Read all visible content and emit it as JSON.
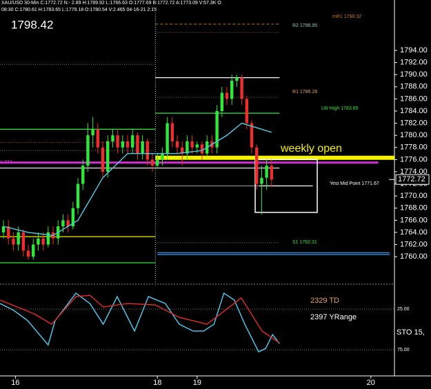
{
  "chart_data": {
    "type": "candlestick",
    "header": "XAU/USD 30-Min C:1772.72 N:- 2.89 H:1789.92 L:1766.63 O:1777.69 B:1772.72 A:1773.09 V:57.3K O",
    "subheader": "08:30 C:1780.61 H:1783.65 L:1779.18 O:1780.54 V:2.465 04-16-21 2:15",
    "big_price": "1798.42",
    "annotations": [
      "weekly open",
      "mR1 1798.32",
      "R2 1796.95",
      "R1 1786.28",
      "LW High 1783.65",
      "Yest Mid Point 1771.67",
      "S1 1762.31",
      "1.772"
    ],
    "last_price": 1772.72,
    "up_color": "#2ee83a",
    "down_color": "#ee2d2d",
    "xlim": [
      -0.7,
      78.75
    ],
    "xticks": [
      {
        "value": 2.4,
        "label": "16"
      },
      {
        "value": 31,
        "label": "18"
      },
      {
        "value": 39,
        "label": "19"
      },
      {
        "value": 74,
        "label": "20"
      }
    ],
    "ylim": [
      1755.7,
      1802.3
    ],
    "yticks": [
      1760,
      1762,
      1764,
      1766,
      1768,
      1770,
      1772,
      1774,
      1776,
      1778,
      1780,
      1782,
      1784,
      1786,
      1788,
      1790,
      1792,
      1794
    ],
    "ytick_labels": [
      "1760.00",
      "1762.00",
      "1764.00",
      "1766.00",
      "1768.00",
      "1770.00",
      "1772.00",
      "1774.00",
      "1776.00",
      "1778.00",
      "1780.00",
      "1782.00",
      "1784.00",
      "1786.00",
      "1788.00",
      "1790.00",
      "1792.00",
      "1794.00"
    ],
    "ohlc": [
      [
        1764,
        1766,
        1763,
        1765
      ],
      [
        1765,
        1766,
        1762,
        1763
      ],
      [
        1763,
        1764,
        1761,
        1762
      ],
      [
        1762,
        1765,
        1761,
        1764
      ],
      [
        1764,
        1764.5,
        1760,
        1761
      ],
      [
        1761,
        1762,
        1759.5,
        1760
      ],
      [
        1760,
        1763,
        1759.5,
        1762
      ],
      [
        1762,
        1764,
        1761,
        1763
      ],
      [
        1763,
        1764,
        1761,
        1762
      ],
      [
        1762,
        1765,
        1761.5,
        1764
      ],
      [
        1764,
        1765,
        1762,
        1763
      ],
      [
        1763,
        1766,
        1762,
        1765
      ],
      [
        1765,
        1767,
        1764,
        1766
      ],
      [
        1766,
        1767,
        1764,
        1765
      ],
      [
        1765,
        1769,
        1764.5,
        1768
      ],
      [
        1768,
        1773,
        1767,
        1772
      ],
      [
        1772,
        1776,
        1771,
        1775
      ],
      [
        1775,
        1782,
        1774,
        1780
      ],
      [
        1780,
        1783,
        1778,
        1781
      ],
      [
        1781,
        1782,
        1777,
        1778
      ],
      [
        1778,
        1779,
        1773,
        1774
      ],
      [
        1774,
        1780,
        1773,
        1779
      ],
      [
        1779,
        1781,
        1778,
        1780
      ],
      [
        1780,
        1781,
        1777,
        1778
      ],
      [
        1778,
        1780,
        1777,
        1779
      ],
      [
        1779,
        1780,
        1777,
        1778
      ],
      [
        1778,
        1781,
        1777,
        1780
      ],
      [
        1780,
        1780.5,
        1776,
        1777
      ],
      [
        1777,
        1780,
        1776,
        1779
      ],
      [
        1779,
        1779.5,
        1775,
        1776
      ],
      [
        1776,
        1777,
        1774,
        1775
      ],
      [
        1775,
        1777,
        1774.5,
        1776
      ],
      [
        1776,
        1778,
        1775,
        1777
      ],
      [
        1777,
        1783,
        1776,
        1782
      ],
      [
        1782,
        1783,
        1778,
        1779
      ],
      [
        1779,
        1780,
        1777,
        1778
      ],
      [
        1778,
        1779,
        1775,
        1777
      ],
      [
        1777,
        1780,
        1776,
        1779
      ],
      [
        1779,
        1780,
        1777,
        1778
      ],
      [
        1778,
        1779,
        1777,
        1778.5
      ],
      [
        1778.5,
        1779,
        1776,
        1777
      ],
      [
        1777,
        1780,
        1776.5,
        1779
      ],
      [
        1779,
        1780,
        1777,
        1778
      ],
      [
        1778,
        1785,
        1777,
        1784
      ],
      [
        1784,
        1788,
        1783,
        1787
      ],
      [
        1787,
        1788,
        1785,
        1786
      ],
      [
        1786,
        1790,
        1785,
        1789
      ],
      [
        1789,
        1790,
        1788,
        1789.5
      ],
      [
        1789.5,
        1790,
        1785,
        1786
      ],
      [
        1786,
        1786.5,
        1781,
        1782
      ],
      [
        1782,
        1782.5,
        1777,
        1778
      ],
      [
        1778,
        1778.5,
        1771,
        1772
      ],
      [
        1772,
        1775,
        1767,
        1773
      ],
      [
        1773,
        1776,
        1771,
        1775
      ],
      [
        1775,
        1776,
        1771.5,
        1772.72
      ]
    ],
    "ma": {
      "color": "#4ec3d8",
      "x": [
        0,
        5,
        10,
        15,
        20,
        25,
        30,
        35,
        40,
        45,
        48,
        50,
        52,
        54
      ],
      "values": [
        1765,
        1764,
        1763.5,
        1766,
        1773,
        1777,
        1777,
        1777,
        1777.5,
        1780,
        1782,
        1781.5,
        1781,
        1780.5
      ]
    },
    "levels": [
      {
        "value": 1798.32,
        "from": 30.6,
        "to": 55.6,
        "color": "#c87a2a",
        "style": "dashed"
      },
      {
        "value": 1796.95,
        "from": 30.6,
        "to": 55.6,
        "color": "#8a6a3a",
        "style": "dotted"
      },
      {
        "value": 1791.7,
        "from": -0.7,
        "to": 30.6,
        "color": "#8a5a3a",
        "style": "dotted"
      },
      {
        "value": 1789.5,
        "from": 30.6,
        "to": 55.6,
        "color": "#ffffff",
        "style": "solid"
      },
      {
        "value": 1786.28,
        "from": 30.6,
        "to": 55.6,
        "color": "#8a5a3a",
        "style": "dotted"
      },
      {
        "value": 1783.65,
        "from": 30.6,
        "to": 55.6,
        "color": "#2ee83a",
        "style": "solid"
      },
      {
        "value": 1781,
        "from": -0.7,
        "to": 30.6,
        "color": "#2ee83a",
        "style": "solid"
      },
      {
        "value": 1778.8,
        "from": -0.7,
        "to": 30.6,
        "color": "#c03030",
        "style": "dotted"
      },
      {
        "value": 1777.5,
        "from": -0.7,
        "to": 30.6,
        "color": "#8a5a3a",
        "style": "dotted"
      },
      {
        "value": 1776.3,
        "from": 30.6,
        "to": 78.75,
        "color": "#f5f000",
        "style": "thick"
      },
      {
        "value": 1775.5,
        "from": -0.7,
        "to": 75.5,
        "color": "#d030d0",
        "style": "medium"
      },
      {
        "value": 1774.6,
        "from": -0.7,
        "to": 55.6,
        "color": "#ffffff",
        "style": "solid"
      },
      {
        "value": 1771.67,
        "from": 30.6,
        "to": 55.6,
        "color": "#888888",
        "style": "solid"
      },
      {
        "value": 1771.67,
        "from": 51.5,
        "to": 62.3,
        "color": "#ffffff",
        "style": "solid"
      },
      {
        "value": 1763.3,
        "from": -0.7,
        "to": 30.6,
        "color": "#f5f000",
        "style": "solid"
      },
      {
        "value": 1762.31,
        "from": 30.6,
        "to": 55.6,
        "color": "#6a8a6a",
        "style": "dotted"
      },
      {
        "value": 1760.5,
        "from": 31,
        "to": 77.8,
        "color": "#3a8ad8",
        "style": "double"
      },
      {
        "value": 1759,
        "from": -0.7,
        "to": 30.6,
        "color": "#2ee83a",
        "style": "solid"
      }
    ],
    "session_line": 30.6,
    "box": {
      "x": [
        50.7,
        63.2
      ],
      "y": [
        1767.3,
        1776
      ]
    },
    "stochastic": {
      "label": "STO  15,",
      "td_label": "2329 TD",
      "range_label": "2397 YRange",
      "ylim": [
        -3,
        107
      ],
      "inverted": true,
      "yticks": [
        {
          "value": 25,
          "label": "25.00"
        },
        {
          "value": 75,
          "label": "75.00"
        }
      ],
      "series": [
        {
          "color": "#4ec3e8",
          "x": [
            -0.7,
            2.1,
            4.9,
            9,
            10.4,
            12.5,
            14.6,
            17.4,
            20.1,
            22.9,
            26.4,
            29.2,
            32.6,
            35.4,
            38.2,
            40.3,
            42.4,
            44.4,
            46.5,
            48.6,
            51.4,
            52.8,
            54.2,
            55.6
          ],
          "values": [
            18.2,
            26.7,
            39.4,
            69,
            39.4,
            22.5,
            5.5,
            18.2,
            43.6,
            9.7,
            52,
            9.7,
            18.2,
            43.6,
            52,
            52,
            43.6,
            5.5,
            14,
            43.6,
            77.5,
            73.3,
            56.4,
            67.4
          ]
        },
        {
          "color": "#d82a2a",
          "x": [
            -0.7,
            6.2,
            9.7,
            14.6,
            17.4,
            20.1,
            25,
            30.6,
            35.4,
            41,
            47.9,
            52.1,
            55.6
          ],
          "values": [
            14,
            30.9,
            43.6,
            9.7,
            8.1,
            22.5,
            18.2,
            19.9,
            35.2,
            43.6,
            11.4,
            52.1,
            66.5
          ]
        }
      ]
    }
  }
}
